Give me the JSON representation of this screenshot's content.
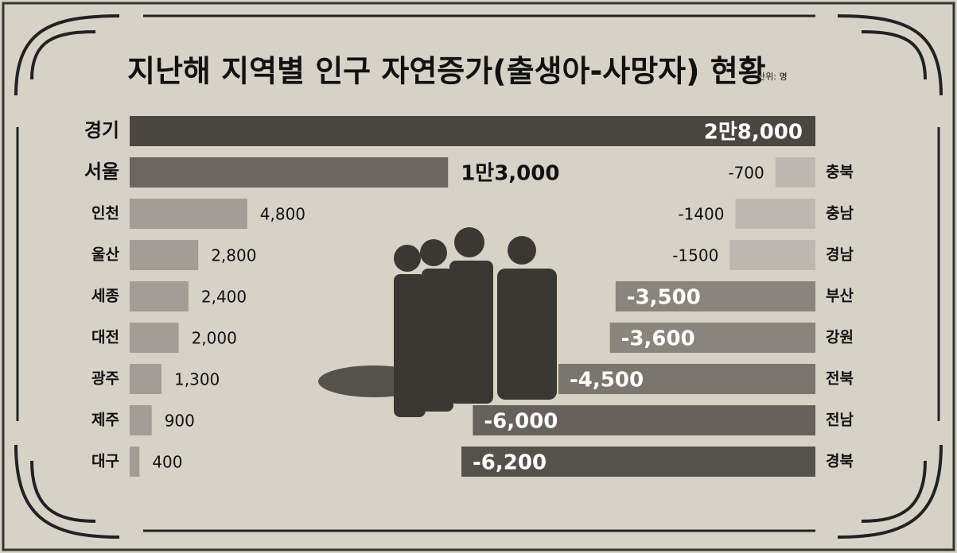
{
  "title": "지난해 지역별 인구 자연증가(출생아-사망자) 현황",
  "unit": "단위: 명",
  "chart_data": [
    {
      "type": "bar",
      "categories": [
        "경기",
        "서울",
        "인천",
        "울산",
        "세종",
        "대전",
        "광주",
        "제주",
        "대구"
      ],
      "values": [
        28000,
        13000,
        4800,
        2800,
        2400,
        2000,
        1300,
        900,
        400
      ],
      "value_labels": [
        "2만8,000",
        "1만3,000",
        "4,800",
        "2,800",
        "2,400",
        "2,000",
        "1,300",
        "900",
        "400"
      ],
      "colors": [
        "#4a4741",
        "#6a665f",
        "#a39e95",
        "#a39e95",
        "#a39e95",
        "#a39e95",
        "#a39e95",
        "#a39e95",
        "#a39e95"
      ]
    },
    {
      "type": "bar",
      "categories": [
        "충북",
        "충남",
        "경남",
        "부산",
        "강원",
        "전북",
        "전남",
        "경북"
      ],
      "values": [
        -700,
        -1400,
        -1500,
        -3500,
        -3600,
        -4500,
        -6000,
        -6200
      ],
      "value_labels": [
        "-700",
        "-1400",
        "-1500",
        "-3,500",
        "-3,600",
        "-4,500",
        "-6,000",
        "-6,200"
      ],
      "colors": [
        "#bdb8af",
        "#bdb8af",
        "#bdb8af",
        "#8a857c",
        "#8a857c",
        "#7a766e",
        "#66625b",
        "#55524c"
      ]
    }
  ]
}
